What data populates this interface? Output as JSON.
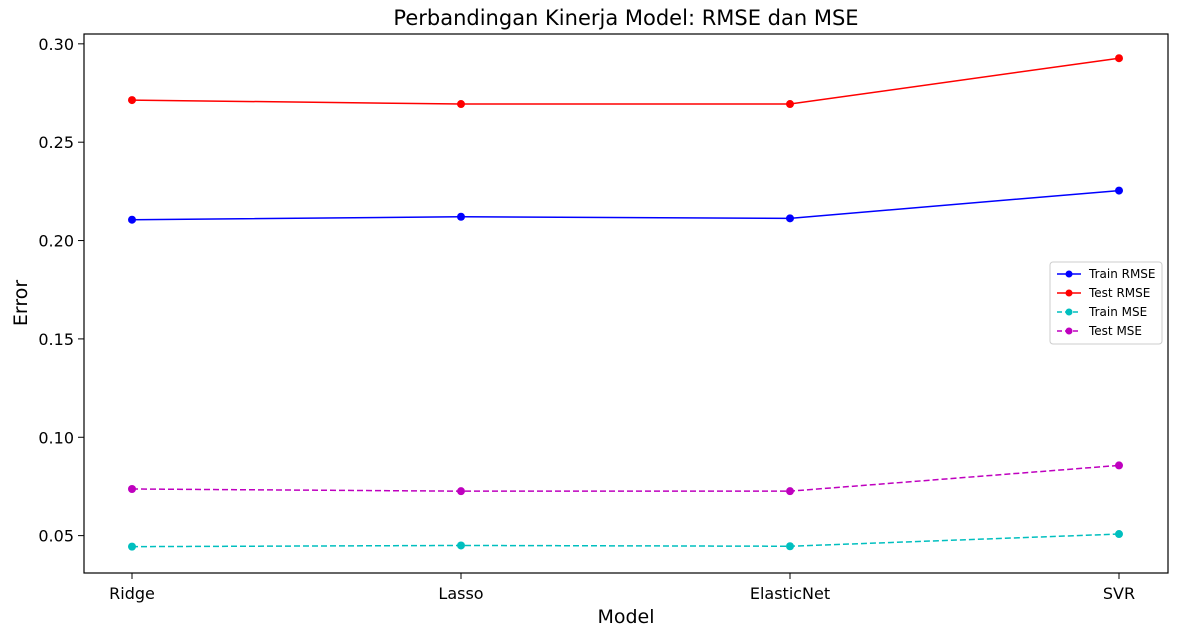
{
  "chart_data": {
    "type": "line",
    "title": "Perbandingan Kinerja Model: RMSE dan MSE",
    "xlabel": "Model",
    "ylabel": "Error",
    "categories": [
      "Ridge",
      "Lasso",
      "ElasticNet",
      "SVR"
    ],
    "ylim": [
      0.031,
      0.305
    ],
    "yticks": [
      0.05,
      0.1,
      0.15,
      0.2,
      0.25,
      0.3
    ],
    "yticks_labels": [
      "0.05",
      "0.10",
      "0.15",
      "0.20",
      "0.25",
      "0.30"
    ],
    "grid": false,
    "legend_position": "center-right",
    "series": [
      {
        "name": "Train RMSE",
        "values": [
          0.2106,
          0.2121,
          0.2113,
          0.2254
        ],
        "color": "#0000ff",
        "linestyle": "solid"
      },
      {
        "name": "Test RMSE",
        "values": [
          0.2714,
          0.2694,
          0.2694,
          0.2927
        ],
        "color": "#ff0000",
        "linestyle": "solid"
      },
      {
        "name": "Train MSE",
        "values": [
          0.0444,
          0.045,
          0.0446,
          0.0508
        ],
        "color": "#00bfbf",
        "linestyle": "dashed"
      },
      {
        "name": "Test MSE",
        "values": [
          0.0737,
          0.0726,
          0.0726,
          0.0857
        ],
        "color": "#bf00bf",
        "linestyle": "dashed"
      }
    ]
  }
}
